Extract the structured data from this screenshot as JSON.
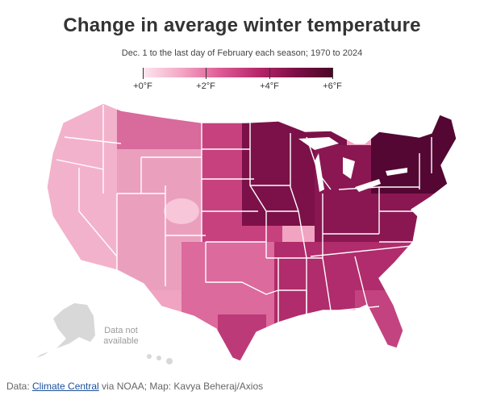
{
  "title": "Change in average winter temperature",
  "subtitle": "Dec. 1 to the last day of February each season; 1970 to 2024",
  "legend": {
    "ticks": [
      {
        "label": "+0°F",
        "value": 0
      },
      {
        "label": "+2°F",
        "value": 2
      },
      {
        "label": "+4°F",
        "value": 4
      },
      {
        "label": "+6°F",
        "value": 6
      }
    ],
    "colors": [
      "#fde6ee",
      "#f3a8c4",
      "#de5d95",
      "#b8286c",
      "#7d0f45",
      "#4a0527"
    ]
  },
  "no_data": {
    "line1": "Data not",
    "line2": "available",
    "color": "#d8d8d8"
  },
  "source": {
    "prefix": "Data: ",
    "link": "Climate Central",
    "suffix": " via NOAA; Map: Kavya Beheraj/Axios"
  }
}
